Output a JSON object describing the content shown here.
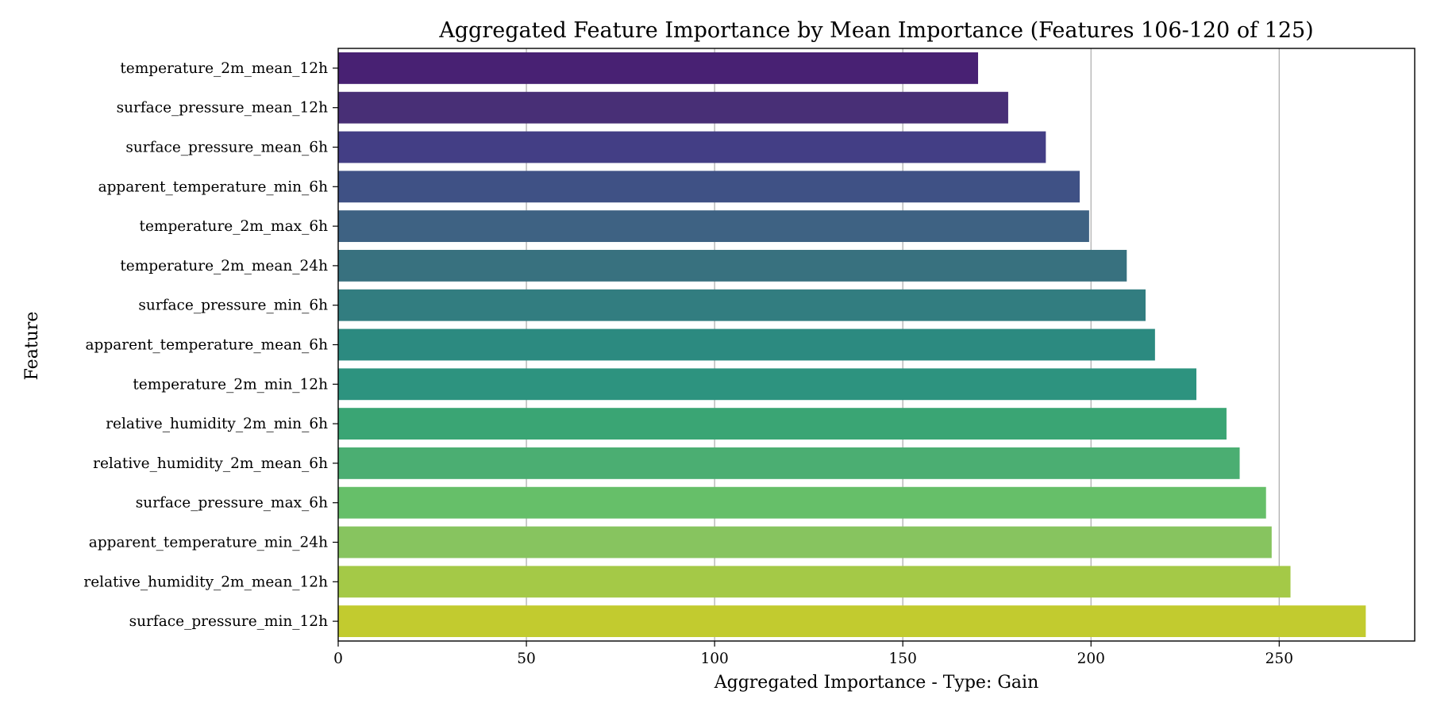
{
  "chart_data": {
    "type": "bar",
    "orientation": "horizontal",
    "title": "Aggregated Feature Importance by Mean Importance (Features 106-120 of 125)",
    "xlabel": "Aggregated Importance - Type: Gain",
    "ylabel": "Feature",
    "xlim": [
      0,
      286
    ],
    "xticks": [
      0,
      50,
      100,
      150,
      200,
      250
    ],
    "grid": "x",
    "colormap": "viridis",
    "categories": [
      "temperature_2m_mean_12h",
      "surface_pressure_mean_12h",
      "surface_pressure_mean_6h",
      "apparent_temperature_min_6h",
      "temperature_2m_max_6h",
      "temperature_2m_mean_24h",
      "surface_pressure_min_6h",
      "apparent_temperature_mean_6h",
      "temperature_2m_min_12h",
      "relative_humidity_2m_min_6h",
      "relative_humidity_2m_mean_6h",
      "surface_pressure_max_6h",
      "apparent_temperature_min_24h",
      "relative_humidity_2m_mean_12h",
      "surface_pressure_min_12h"
    ],
    "values": [
      170,
      178,
      188,
      197,
      199.5,
      209.5,
      214.5,
      217,
      228,
      236,
      239.5,
      246.5,
      248,
      253,
      273
    ],
    "colors": [
      "#482173",
      "#482f76",
      "#433e85",
      "#3f5185",
      "#3e6283",
      "#38717f",
      "#327d80",
      "#2c8a80",
      "#2d937f",
      "#3aa574",
      "#4bae72",
      "#66bf69",
      "#87c45f",
      "#a4c947",
      "#c2cb2f"
    ]
  }
}
